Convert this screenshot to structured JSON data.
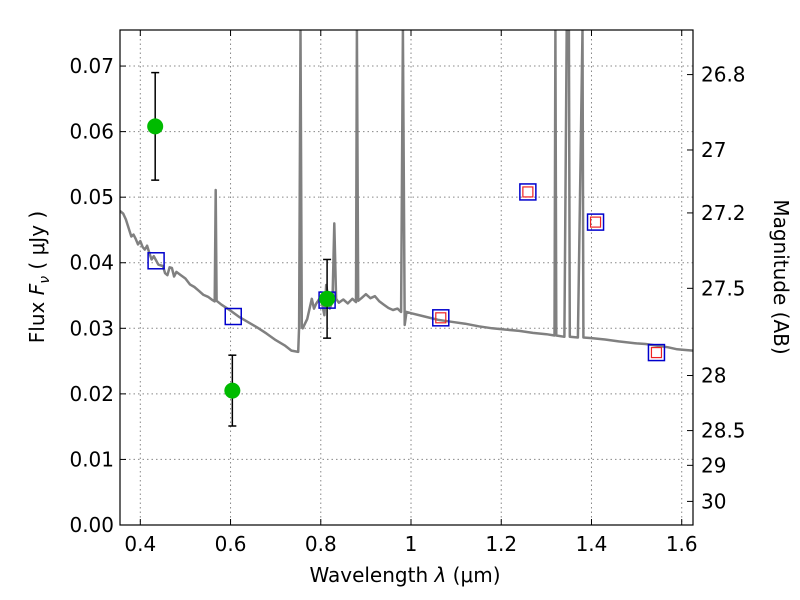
{
  "chart_data": {
    "type": "scatter",
    "title": "",
    "xlabel_prefix": "Wavelength  ",
    "xlabel_symbol": "λ",
    "xlabel_suffix": " (μm)",
    "ylabel_prefix": "Flux  ",
    "ylabel_symbol": "F",
    "ylabel_subscript": "ν",
    "ylabel_suffix": "  ( μJy )",
    "y2label": "Magnitude (AB)",
    "xlim": [
      0.355,
      1.625
    ],
    "ylim": [
      0.0,
      0.0755
    ],
    "xticks": [
      0.4,
      0.6,
      0.8,
      1.0,
      1.2,
      1.4,
      1.6
    ],
    "xtick_labels": [
      "0.4",
      "0.6",
      "0.8",
      "1",
      "1.2",
      "1.4",
      "1.6"
    ],
    "yticks": [
      0.0,
      0.01,
      0.02,
      0.03,
      0.04,
      0.05,
      0.06,
      0.07
    ],
    "ytick_labels": [
      "0.00",
      "0.01",
      "0.02",
      "0.03",
      "0.04",
      "0.05",
      "0.06",
      "0.07"
    ],
    "y2ticks": [
      {
        "label": "26.8",
        "flux": 0.0687
      },
      {
        "label": "27",
        "flux": 0.0572
      },
      {
        "label": "27.2",
        "flux": 0.0476
      },
      {
        "label": "27.5",
        "flux": 0.0361
      },
      {
        "label": "28",
        "flux": 0.0228
      },
      {
        "label": "28.5",
        "flux": 0.0144
      },
      {
        "label": "29",
        "flux": 0.0091
      },
      {
        "label": "30",
        "flux": 0.0036
      }
    ],
    "grid": true,
    "colors": {
      "sed": "#808080",
      "observed": "#00bb00",
      "errorbar": "#000000",
      "model_square": "#0000cc",
      "model_inner": "#ee2222"
    },
    "series": [
      {
        "type": "line",
        "points": [
          [
            0.355,
            0.0479
          ],
          [
            0.362,
            0.0475
          ],
          [
            0.368,
            0.0466
          ],
          [
            0.375,
            0.0451
          ],
          [
            0.38,
            0.044
          ],
          [
            0.385,
            0.0443
          ],
          [
            0.39,
            0.0436
          ],
          [
            0.395,
            0.0428
          ],
          [
            0.4,
            0.0433
          ],
          [
            0.405,
            0.0424
          ],
          [
            0.41,
            0.042
          ],
          [
            0.415,
            0.0426
          ],
          [
            0.42,
            0.0415
          ],
          [
            0.425,
            0.0405
          ],
          [
            0.43,
            0.041
          ],
          [
            0.44,
            0.0397
          ],
          [
            0.45,
            0.0395
          ],
          [
            0.455,
            0.0384
          ],
          [
            0.46,
            0.0381
          ],
          [
            0.465,
            0.0393
          ],
          [
            0.47,
            0.0392
          ],
          [
            0.475,
            0.0379
          ],
          [
            0.48,
            0.0386
          ],
          [
            0.49,
            0.0381
          ],
          [
            0.5,
            0.0376
          ],
          [
            0.51,
            0.0367
          ],
          [
            0.52,
            0.0363
          ],
          [
            0.53,
            0.0357
          ],
          [
            0.54,
            0.0351
          ],
          [
            0.55,
            0.0348
          ],
          [
            0.56,
            0.0343
          ],
          [
            0.565,
            0.0341
          ],
          [
            0.567,
            0.0511
          ],
          [
            0.569,
            0.0342
          ],
          [
            0.58,
            0.0336
          ],
          [
            0.6,
            0.0327
          ],
          [
            0.62,
            0.0317
          ],
          [
            0.64,
            0.0309
          ],
          [
            0.66,
            0.0301
          ],
          [
            0.68,
            0.0292
          ],
          [
            0.7,
            0.0282
          ],
          [
            0.72,
            0.0274
          ],
          [
            0.735,
            0.0266
          ],
          [
            0.75,
            0.0264
          ],
          [
            0.752,
            0.0302
          ],
          [
            0.755,
            0.0755
          ],
          [
            0.758,
            0.0302
          ],
          [
            0.76,
            0.03
          ],
          [
            0.77,
            0.0314
          ],
          [
            0.78,
            0.0345
          ],
          [
            0.785,
            0.033
          ],
          [
            0.79,
            0.0338
          ],
          [
            0.8,
            0.0348
          ],
          [
            0.808,
            0.032
          ],
          [
            0.812,
            0.0366
          ],
          [
            0.82,
            0.033
          ],
          [
            0.826,
            0.0342
          ],
          [
            0.83,
            0.046
          ],
          [
            0.834,
            0.0345
          ],
          [
            0.84,
            0.0339
          ],
          [
            0.85,
            0.0344
          ],
          [
            0.86,
            0.0338
          ],
          [
            0.87,
            0.0345
          ],
          [
            0.878,
            0.034
          ],
          [
            0.88,
            0.0755
          ],
          [
            0.883,
            0.0342
          ],
          [
            0.89,
            0.0346
          ],
          [
            0.9,
            0.0352
          ],
          [
            0.91,
            0.0346
          ],
          [
            0.92,
            0.0349
          ],
          [
            0.93,
            0.0341
          ],
          [
            0.94,
            0.0336
          ],
          [
            0.95,
            0.0331
          ],
          [
            0.96,
            0.0328
          ],
          [
            0.97,
            0.033
          ],
          [
            0.978,
            0.0325
          ],
          [
            0.982,
            0.0755
          ],
          [
            0.986,
            0.0305
          ],
          [
            0.99,
            0.0325
          ],
          [
            1.0,
            0.0323
          ],
          [
            1.03,
            0.0318
          ],
          [
            1.06,
            0.0313
          ],
          [
            1.09,
            0.031
          ],
          [
            1.12,
            0.0307
          ],
          [
            1.15,
            0.0303
          ],
          [
            1.18,
            0.03
          ],
          [
            1.21,
            0.0298
          ],
          [
            1.24,
            0.0296
          ],
          [
            1.27,
            0.0293
          ],
          [
            1.3,
            0.0291
          ],
          [
            1.318,
            0.0289
          ],
          [
            1.32,
            0.0755
          ],
          [
            1.322,
            0.0289
          ],
          [
            1.34,
            0.0287
          ],
          [
            1.345,
            0.0755
          ],
          [
            1.35,
            0.0755
          ],
          [
            1.352,
            0.0287
          ],
          [
            1.37,
            0.0286
          ],
          [
            1.38,
            0.0755
          ],
          [
            1.382,
            0.0286
          ],
          [
            1.4,
            0.0285
          ],
          [
            1.43,
            0.0283
          ],
          [
            1.46,
            0.028
          ],
          [
            1.5,
            0.0277
          ],
          [
            1.52,
            0.0276
          ],
          [
            1.55,
            0.0273
          ],
          [
            1.57,
            0.0271
          ],
          [
            1.59,
            0.0268
          ],
          [
            1.605,
            0.0267
          ],
          [
            1.625,
            0.0266
          ]
        ]
      },
      {
        "type": "errorbar-points",
        "points": [
          {
            "x": 0.433,
            "y": 0.0608,
            "err": 0.0082
          },
          {
            "x": 0.604,
            "y": 0.0205,
            "err": 0.0054
          },
          {
            "x": 0.814,
            "y": 0.0345,
            "err": 0.006
          }
        ]
      },
      {
        "type": "model-squares",
        "points": [
          {
            "x": 0.435,
            "y": 0.0403,
            "inner": false
          },
          {
            "x": 0.606,
            "y": 0.0318,
            "inner": false
          },
          {
            "x": 0.814,
            "y": 0.0343,
            "inner": false
          },
          {
            "x": 1.066,
            "y": 0.0316,
            "inner": true
          },
          {
            "x": 1.259,
            "y": 0.0508,
            "inner": true
          },
          {
            "x": 1.409,
            "y": 0.0462,
            "inner": true
          },
          {
            "x": 1.544,
            "y": 0.0263,
            "inner": true
          }
        ]
      }
    ]
  }
}
